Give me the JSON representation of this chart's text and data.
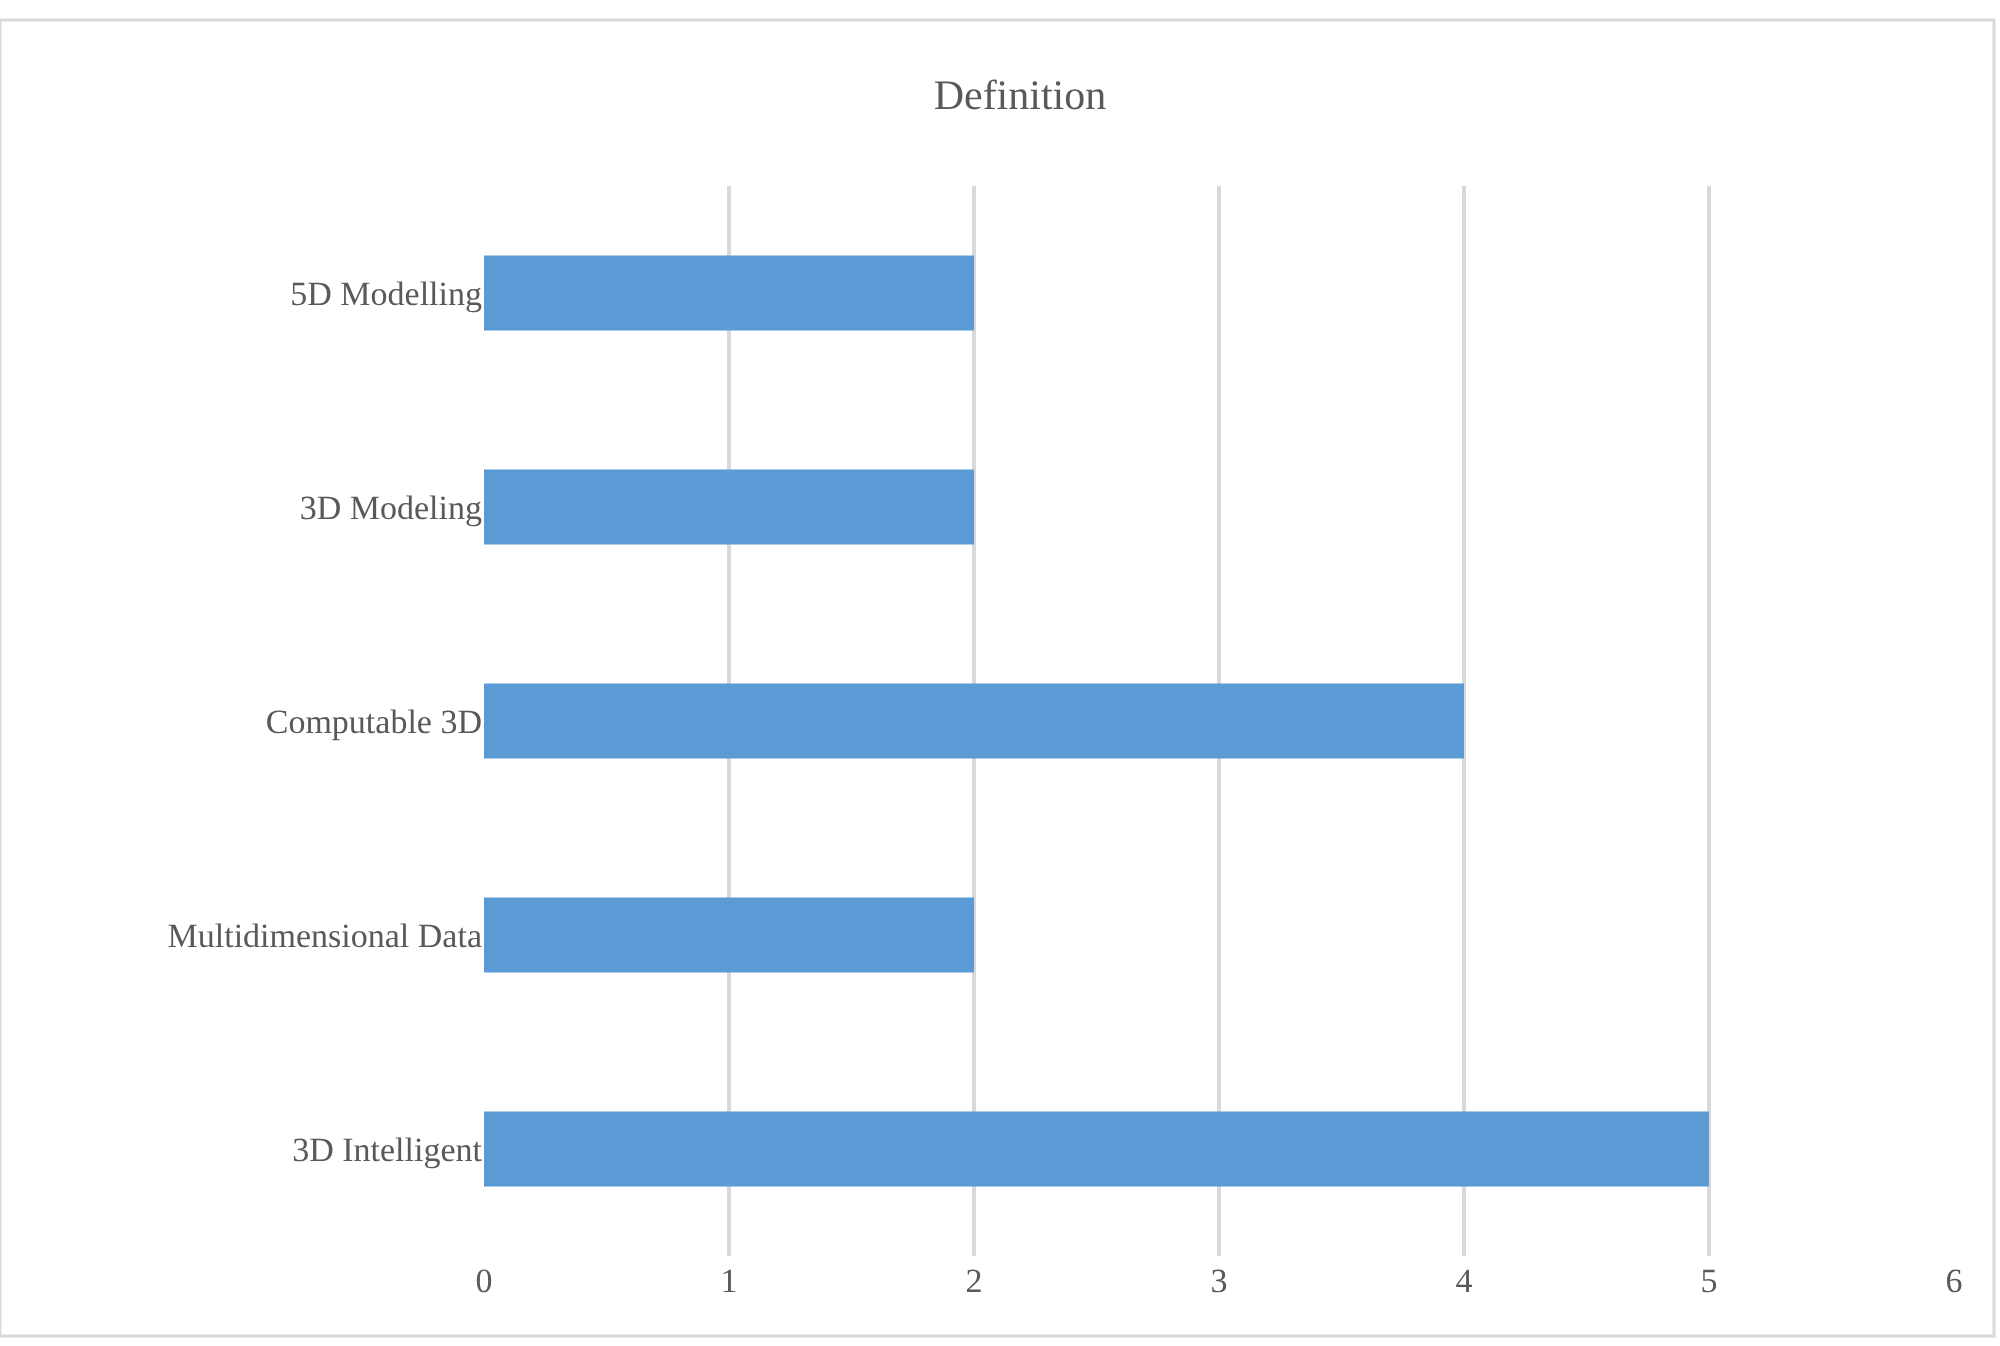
{
  "chart_data": {
    "type": "bar",
    "title": "Definition",
    "orientation": "horizontal",
    "categories": [
      "5D Modelling",
      "3D Modeling",
      "Computable 3D",
      "Multidimensional Data",
      "3D Intelligent"
    ],
    "values": [
      2,
      2,
      4,
      2,
      5
    ],
    "color": "#5b9bd5",
    "xlim": [
      0,
      6
    ],
    "xticks": [
      0,
      1,
      2,
      3,
      4,
      5,
      6
    ],
    "grid": "x",
    "legend": false
  }
}
